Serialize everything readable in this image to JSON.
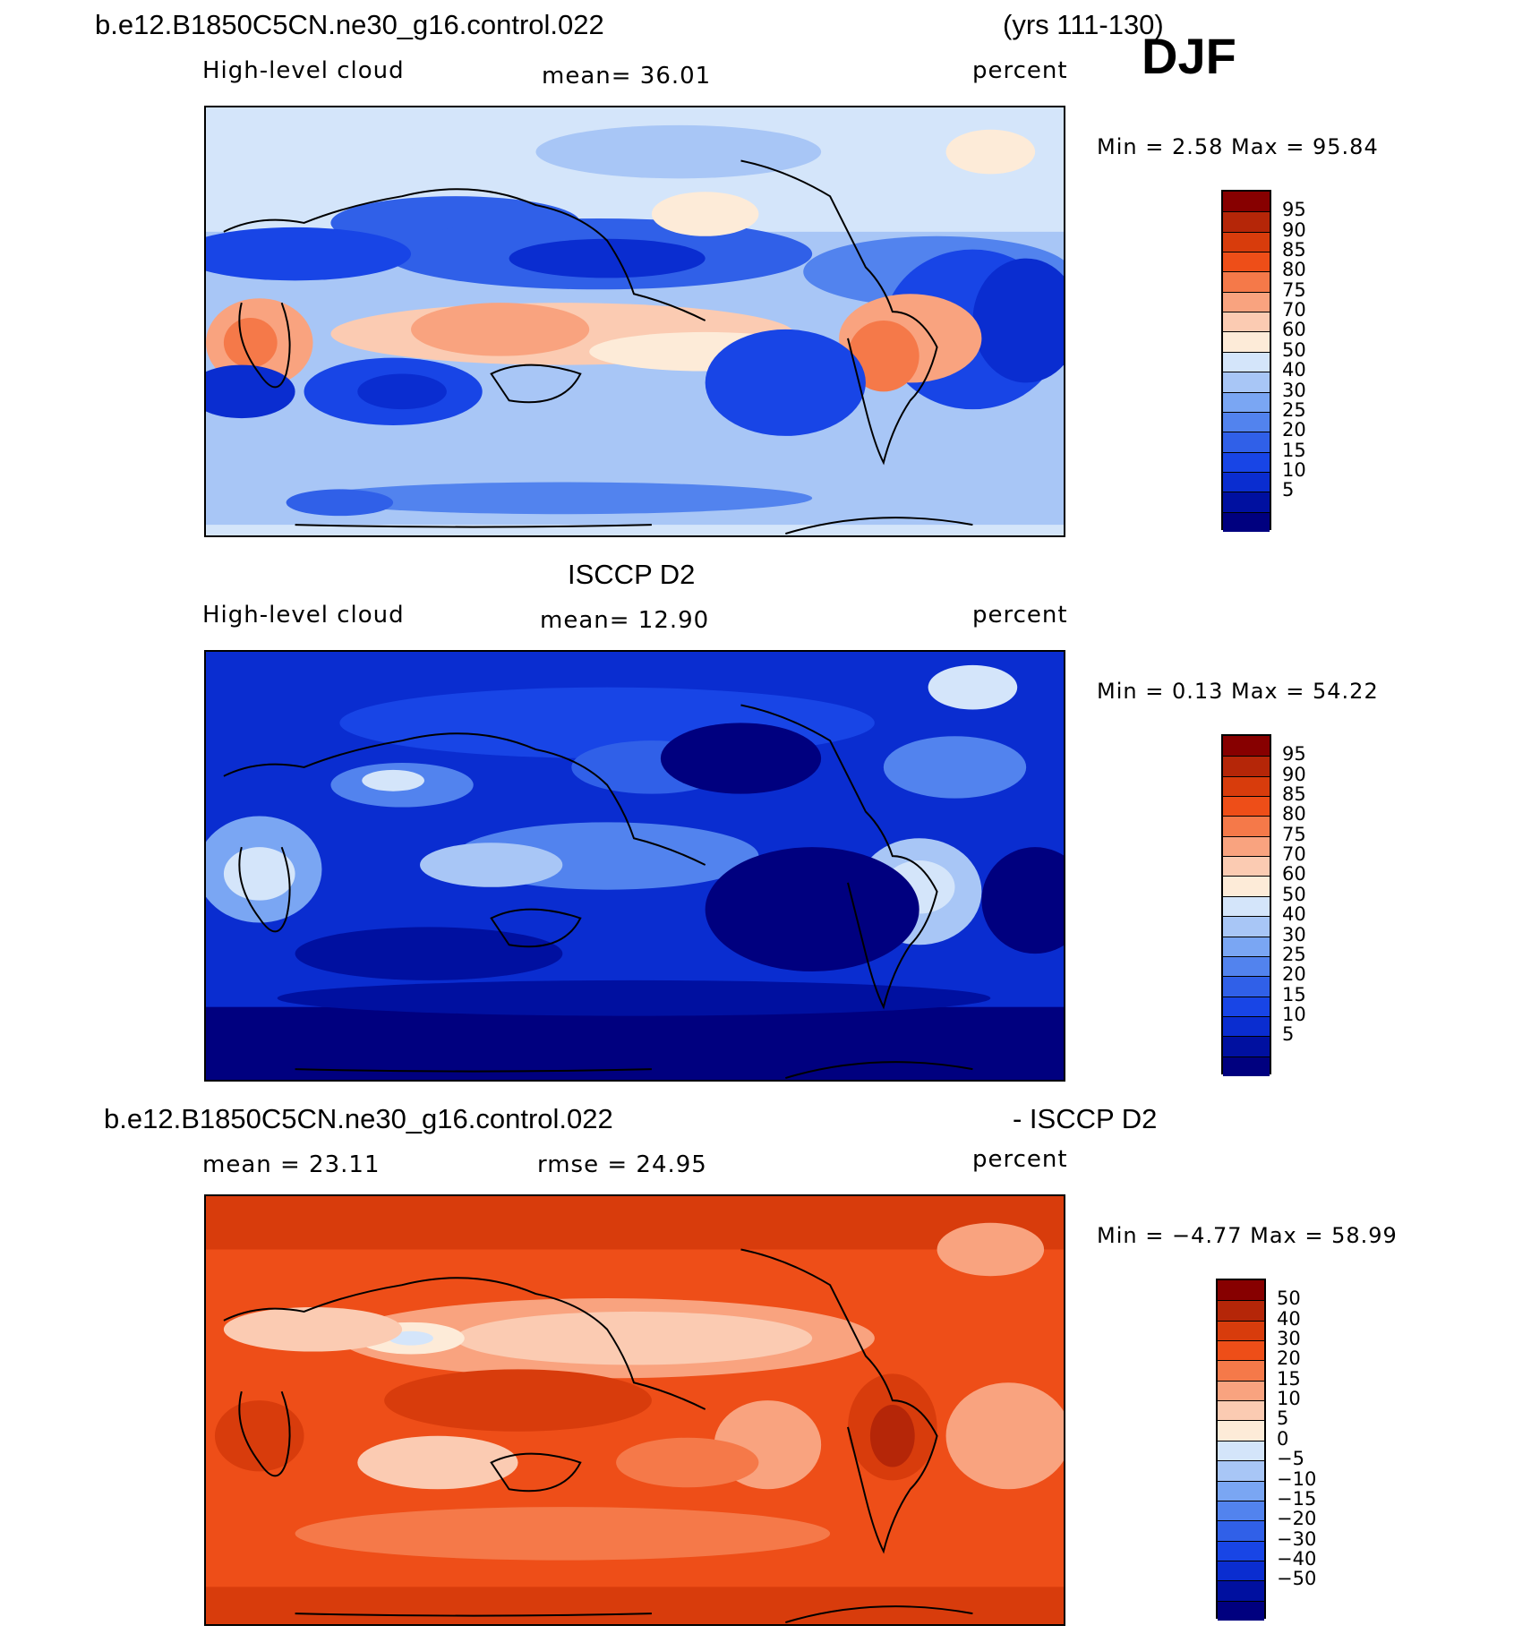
{
  "header": {
    "case_name": "b.e12.B1850C5CN.ne30_g16.control.022",
    "years": "(yrs 111-130)",
    "season": "DJF"
  },
  "colors": {
    "land_outline": "#000000",
    "abs_scale": [
      "#00007f",
      "#0010a0",
      "#0a2dd0",
      "#1845e6",
      "#3060e8",
      "#5283ee",
      "#7aa6f3",
      "#a8c6f6",
      "#d4e5fa",
      "#fdebd8",
      "#fbcbb2",
      "#f9a37f",
      "#f57949",
      "#ee4e18",
      "#d83c0c",
      "#b52608",
      "#870000"
    ],
    "diff_scale": [
      "#00007f",
      "#0010a0",
      "#0a2dd0",
      "#1845e6",
      "#3060e8",
      "#5283ee",
      "#7aa6f3",
      "#a8c6f6",
      "#d4e5fa",
      "#fdebd8",
      "#fbcbb2",
      "#f9a37f",
      "#f57949",
      "#ee4e18",
      "#d83c0c",
      "#b52608",
      "#870000"
    ]
  },
  "panels": [
    {
      "id": "model",
      "field": "High-level cloud",
      "mean_label": "mean=   36.01",
      "units": "percent",
      "minmax": "Min =     2.58  Max =    95.84",
      "colorbar_ticks": [
        "95",
        "90",
        "85",
        "80",
        "75",
        "70",
        "60",
        "50",
        "40",
        "30",
        "25",
        "20",
        "15",
        "10",
        "5"
      ]
    },
    {
      "id": "obs",
      "title": "ISCCP D2",
      "field": "High-level cloud",
      "mean_label": "mean=   12.90",
      "units": "percent",
      "minmax": "Min =     0.13  Max =    54.22",
      "colorbar_ticks": [
        "95",
        "90",
        "85",
        "80",
        "75",
        "70",
        "60",
        "50",
        "40",
        "30",
        "25",
        "20",
        "15",
        "10",
        "5"
      ]
    },
    {
      "id": "diff",
      "title_left": "b.e12.B1850C5CN.ne30_g16.control.022",
      "title_right": "- ISCCP D2",
      "mean_label": "mean =    23.11",
      "rmse_label": "rmse =    24.95",
      "units": "percent",
      "minmax": "Min =   −4.77  Max =    58.99",
      "colorbar_ticks": [
        "50",
        "40",
        "30",
        "20",
        "15",
        "10",
        "5",
        "0",
        "−5",
        "−10",
        "−15",
        "−20",
        "−30",
        "−40",
        "−50"
      ]
    }
  ]
}
